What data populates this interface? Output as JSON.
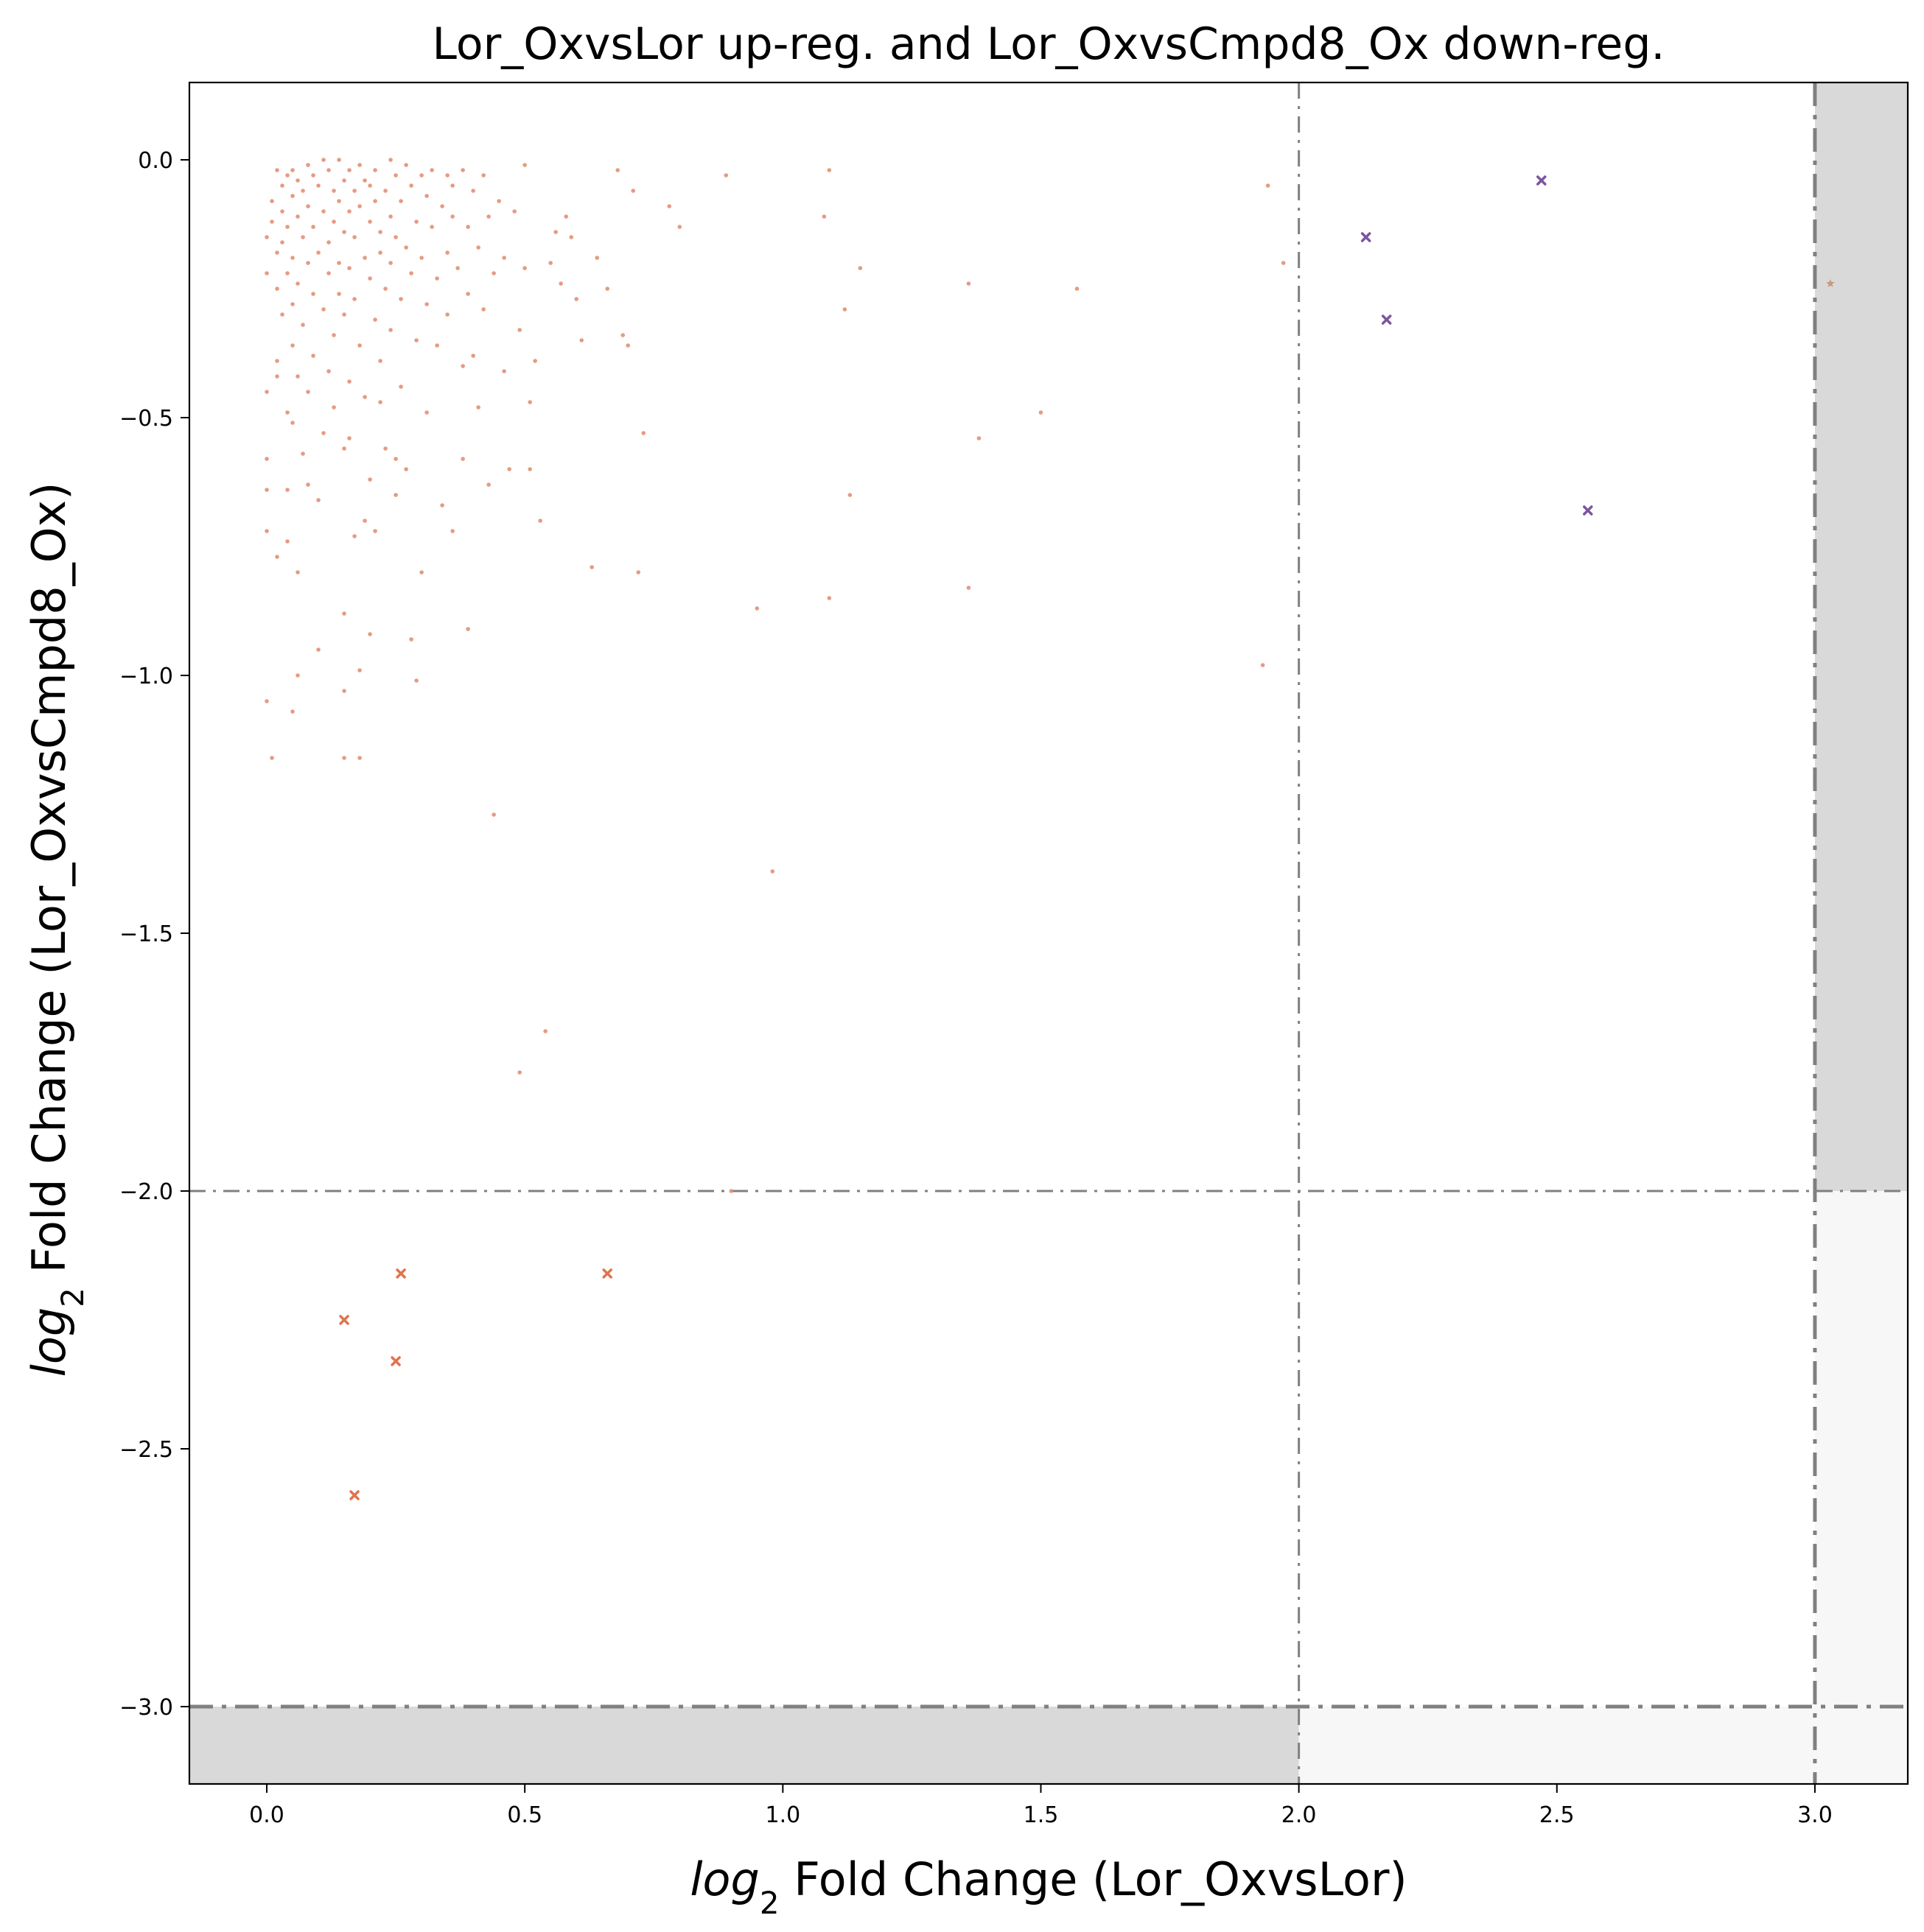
{
  "chart_data": {
    "type": "scatter",
    "title": "Lor_OxvsLor up-reg. and Lor_OxvsCmpd8_Ox down-reg.",
    "xlabel": {
      "italic": "log",
      "sub": "2",
      "rest": " Fold Change (Lor_OxvsLor)"
    },
    "ylabel": {
      "italic": "log",
      "sub": "2",
      "rest": " Fold Change (Lor_OxvsCmpd8_Ox)"
    },
    "xlim": [
      -0.15,
      3.18
    ],
    "ylim": [
      -3.15,
      0.15
    ],
    "xticks": [
      {
        "value": 0.0,
        "label": "0.0"
      },
      {
        "value": 0.5,
        "label": "0.5"
      },
      {
        "value": 1.0,
        "label": "1.0"
      },
      {
        "value": 1.5,
        "label": "1.5"
      },
      {
        "value": 2.0,
        "label": "2.0"
      },
      {
        "value": 2.5,
        "label": "2.5"
      },
      {
        "value": 3.0,
        "label": "3.0"
      }
    ],
    "yticks": [
      {
        "value": 0.0,
        "label": "0.0"
      },
      {
        "value": -0.5,
        "label": "−0.5"
      },
      {
        "value": -1.0,
        "label": "−1.0"
      },
      {
        "value": -1.5,
        "label": "−1.5"
      },
      {
        "value": -2.0,
        "label": "−2.0"
      },
      {
        "value": -2.5,
        "label": "−2.5"
      },
      {
        "value": -3.0,
        "label": "−3.0"
      }
    ],
    "grid": false,
    "thresholds": {
      "vertical": [
        {
          "x": 2.0,
          "style": "thin"
        },
        {
          "x": 3.0,
          "style": "thick"
        }
      ],
      "horizontal": [
        {
          "y": -2.0,
          "style": "thin"
        },
        {
          "y": -3.0,
          "style": "thick"
        }
      ]
    },
    "shaded_regions": [
      {
        "x": [
          3.0,
          3.18
        ],
        "y": [
          -2.0,
          0.15
        ],
        "color": "#d9d9d9"
      },
      {
        "x": [
          -0.15,
          2.0
        ],
        "y": [
          -3.15,
          -3.0
        ],
        "color": "#d9d9d9"
      },
      {
        "x": [
          3.0,
          3.18
        ],
        "y": [
          -3.0,
          -2.0
        ],
        "color": "#f7f7f7"
      },
      {
        "x": [
          2.0,
          3.0
        ],
        "y": [
          -3.15,
          -3.0
        ],
        "color": "#f7f7f7"
      },
      {
        "x": [
          3.0,
          3.18
        ],
        "y": [
          -3.15,
          -3.0
        ],
        "color": "#f7f7f7"
      }
    ],
    "series": [
      {
        "marker": "dot",
        "color": "#e08a6c",
        "points": [
          [
            0.0,
            -0.15
          ],
          [
            0.0,
            -0.22
          ],
          [
            0.0,
            -0.45
          ],
          [
            0.0,
            -0.58
          ],
          [
            0.0,
            -0.64
          ],
          [
            0.0,
            -0.72
          ],
          [
            0.0,
            -1.05
          ],
          [
            0.01,
            -1.16
          ],
          [
            0.01,
            -0.08
          ],
          [
            0.01,
            -0.12
          ],
          [
            0.02,
            -0.02
          ],
          [
            0.02,
            -0.18
          ],
          [
            0.02,
            -0.25
          ],
          [
            0.02,
            -0.39
          ],
          [
            0.02,
            -0.42
          ],
          [
            0.02,
            -0.77
          ],
          [
            0.03,
            -0.05
          ],
          [
            0.03,
            -0.1
          ],
          [
            0.03,
            -0.16
          ],
          [
            0.03,
            -0.3
          ],
          [
            0.04,
            -0.03
          ],
          [
            0.04,
            -0.13
          ],
          [
            0.04,
            -0.22
          ],
          [
            0.04,
            -0.49
          ],
          [
            0.04,
            -0.64
          ],
          [
            0.04,
            -0.74
          ],
          [
            0.05,
            -0.02
          ],
          [
            0.05,
            -0.07
          ],
          [
            0.05,
            -0.19
          ],
          [
            0.05,
            -0.28
          ],
          [
            0.05,
            -0.36
          ],
          [
            0.05,
            -0.51
          ],
          [
            0.05,
            -1.07
          ],
          [
            0.06,
            -0.04
          ],
          [
            0.06,
            -0.11
          ],
          [
            0.06,
            -0.24
          ],
          [
            0.06,
            -0.42
          ],
          [
            0.06,
            -0.8
          ],
          [
            0.06,
            -1.0
          ],
          [
            0.07,
            -0.06
          ],
          [
            0.07,
            -0.15
          ],
          [
            0.07,
            -0.32
          ],
          [
            0.07,
            -0.57
          ],
          [
            0.08,
            -0.01
          ],
          [
            0.08,
            -0.09
          ],
          [
            0.08,
            -0.2
          ],
          [
            0.08,
            -0.45
          ],
          [
            0.08,
            -0.63
          ],
          [
            0.09,
            -0.03
          ],
          [
            0.09,
            -0.13
          ],
          [
            0.09,
            -0.26
          ],
          [
            0.09,
            -0.38
          ],
          [
            0.1,
            -0.05
          ],
          [
            0.1,
            -0.18
          ],
          [
            0.1,
            -0.66
          ],
          [
            0.1,
            -0.95
          ],
          [
            0.11,
            -0.0
          ],
          [
            0.11,
            -0.1
          ],
          [
            0.11,
            -0.29
          ],
          [
            0.11,
            -0.53
          ],
          [
            0.12,
            -0.02
          ],
          [
            0.12,
            -0.16
          ],
          [
            0.12,
            -0.22
          ],
          [
            0.12,
            -0.41
          ],
          [
            0.13,
            -0.06
          ],
          [
            0.13,
            -0.12
          ],
          [
            0.13,
            -0.34
          ],
          [
            0.13,
            -0.48
          ],
          [
            0.14,
            -0.0
          ],
          [
            0.14,
            -0.08
          ],
          [
            0.14,
            -0.2
          ],
          [
            0.14,
            -0.26
          ],
          [
            0.15,
            -0.04
          ],
          [
            0.15,
            -0.14
          ],
          [
            0.15,
            -0.3
          ],
          [
            0.15,
            -0.56
          ],
          [
            0.15,
            -0.88
          ],
          [
            0.15,
            -1.03
          ],
          [
            0.15,
            -1.16
          ],
          [
            0.16,
            -0.02
          ],
          [
            0.16,
            -0.1
          ],
          [
            0.16,
            -0.21
          ],
          [
            0.16,
            -0.43
          ],
          [
            0.16,
            -0.54
          ],
          [
            0.17,
            -0.06
          ],
          [
            0.17,
            -0.15
          ],
          [
            0.17,
            -0.27
          ],
          [
            0.17,
            -0.73
          ],
          [
            0.18,
            -0.01
          ],
          [
            0.18,
            -0.09
          ],
          [
            0.18,
            -0.36
          ],
          [
            0.18,
            -0.99
          ],
          [
            0.18,
            -1.16
          ],
          [
            0.19,
            -0.04
          ],
          [
            0.19,
            -0.19
          ],
          [
            0.19,
            -0.46
          ],
          [
            0.19,
            -0.7
          ],
          [
            0.2,
            -0.05
          ],
          [
            0.2,
            -0.12
          ],
          [
            0.2,
            -0.23
          ],
          [
            0.2,
            -0.62
          ],
          [
            0.2,
            -0.92
          ],
          [
            0.21,
            -0.02
          ],
          [
            0.21,
            -0.08
          ],
          [
            0.21,
            -0.31
          ],
          [
            0.21,
            -0.72
          ],
          [
            0.22,
            -0.14
          ],
          [
            0.22,
            -0.18
          ],
          [
            0.22,
            -0.39
          ],
          [
            0.22,
            -0.47
          ],
          [
            0.23,
            -0.06
          ],
          [
            0.23,
            -0.25
          ],
          [
            0.23,
            -0.56
          ],
          [
            0.24,
            -0.0
          ],
          [
            0.24,
            -0.11
          ],
          [
            0.24,
            -0.2
          ],
          [
            0.24,
            -0.33
          ],
          [
            0.25,
            -0.03
          ],
          [
            0.25,
            -0.15
          ],
          [
            0.25,
            -0.58
          ],
          [
            0.25,
            -0.65
          ],
          [
            0.26,
            -0.08
          ],
          [
            0.26,
            -0.27
          ],
          [
            0.26,
            -0.44
          ],
          [
            0.27,
            -0.01
          ],
          [
            0.27,
            -0.17
          ],
          [
            0.27,
            -0.6
          ],
          [
            0.28,
            -0.05
          ],
          [
            0.28,
            -0.22
          ],
          [
            0.28,
            -0.93
          ],
          [
            0.29,
            -0.12
          ],
          [
            0.29,
            -0.35
          ],
          [
            0.29,
            -1.01
          ],
          [
            0.3,
            -0.03
          ],
          [
            0.3,
            -0.19
          ],
          [
            0.3,
            -0.8
          ],
          [
            0.31,
            -0.07
          ],
          [
            0.31,
            -0.28
          ],
          [
            0.31,
            -0.49
          ],
          [
            0.32,
            -0.02
          ],
          [
            0.32,
            -0.13
          ],
          [
            0.33,
            -0.23
          ],
          [
            0.33,
            -0.36
          ],
          [
            0.34,
            -0.09
          ],
          [
            0.34,
            -0.67
          ],
          [
            0.35,
            -0.03
          ],
          [
            0.35,
            -0.18
          ],
          [
            0.35,
            -0.3
          ],
          [
            0.36,
            -0.05
          ],
          [
            0.36,
            -0.11
          ],
          [
            0.36,
            -0.72
          ],
          [
            0.37,
            -0.21
          ],
          [
            0.38,
            -0.02
          ],
          [
            0.38,
            -0.4
          ],
          [
            0.38,
            -0.58
          ],
          [
            0.39,
            -0.13
          ],
          [
            0.39,
            -0.26
          ],
          [
            0.39,
            -0.91
          ],
          [
            0.4,
            -0.06
          ],
          [
            0.4,
            -0.38
          ],
          [
            0.41,
            -0.17
          ],
          [
            0.41,
            -0.48
          ],
          [
            0.42,
            -0.03
          ],
          [
            0.42,
            -0.29
          ],
          [
            0.43,
            -0.11
          ],
          [
            0.43,
            -0.63
          ],
          [
            0.44,
            -0.22
          ],
          [
            0.44,
            -1.27
          ],
          [
            0.45,
            -0.08
          ],
          [
            0.46,
            -0.19
          ],
          [
            0.46,
            -0.41
          ],
          [
            0.47,
            -0.6
          ],
          [
            0.48,
            -0.1
          ],
          [
            0.49,
            -0.33
          ],
          [
            0.49,
            -1.77
          ],
          [
            0.5,
            -0.01
          ],
          [
            0.5,
            -0.21
          ],
          [
            0.51,
            -0.47
          ],
          [
            0.51,
            -0.6
          ],
          [
            0.52,
            -0.39
          ],
          [
            0.53,
            -0.7
          ],
          [
            0.54,
            -1.69
          ],
          [
            0.55,
            -0.2
          ],
          [
            0.56,
            -0.14
          ],
          [
            0.57,
            -0.24
          ],
          [
            0.58,
            -0.11
          ],
          [
            0.59,
            -0.15
          ],
          [
            0.6,
            -0.27
          ],
          [
            0.61,
            -0.35
          ],
          [
            0.63,
            -0.79
          ],
          [
            0.64,
            -0.19
          ],
          [
            0.66,
            -0.25
          ],
          [
            0.68,
            -0.02
          ],
          [
            0.69,
            -0.34
          ],
          [
            0.7,
            -0.36
          ],
          [
            0.71,
            -0.06
          ],
          [
            0.72,
            -0.8
          ],
          [
            0.73,
            -0.53
          ],
          [
            0.78,
            -0.09
          ],
          [
            0.8,
            -0.13
          ],
          [
            0.89,
            -0.03
          ],
          [
            0.9,
            -2.0
          ],
          [
            0.95,
            -0.87
          ],
          [
            0.98,
            -1.38
          ],
          [
            1.08,
            -0.11
          ],
          [
            1.09,
            -0.02
          ],
          [
            1.09,
            -0.85
          ],
          [
            1.12,
            -0.29
          ],
          [
            1.13,
            -0.65
          ],
          [
            1.15,
            -0.21
          ],
          [
            1.36,
            -0.24
          ],
          [
            1.36,
            -0.83
          ],
          [
            1.38,
            -0.54
          ],
          [
            1.5,
            -0.49
          ],
          [
            1.57,
            -0.25
          ],
          [
            1.93,
            -0.98
          ],
          [
            1.94,
            -0.05
          ],
          [
            1.97,
            -0.2
          ]
        ]
      },
      {
        "marker": "x",
        "color": "#e0734f",
        "points": [
          [
            0.15,
            -2.25
          ],
          [
            0.17,
            -2.59
          ],
          [
            0.25,
            -2.33
          ],
          [
            0.26,
            -2.16
          ],
          [
            0.66,
            -2.16
          ]
        ]
      },
      {
        "marker": "x",
        "color": "#7b559e",
        "points": [
          [
            2.13,
            -0.15
          ],
          [
            2.17,
            -0.31
          ],
          [
            2.47,
            -0.04
          ],
          [
            2.56,
            -0.68
          ]
        ]
      },
      {
        "marker": "star",
        "color": "#c9987f",
        "points": [
          [
            3.03,
            -0.24
          ]
        ]
      }
    ]
  }
}
